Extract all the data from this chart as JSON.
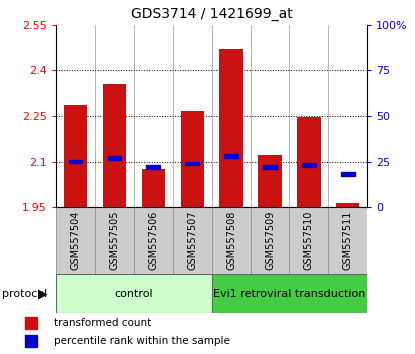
{
  "title": "GDS3714 / 1421699_at",
  "samples": [
    "GSM557504",
    "GSM557505",
    "GSM557506",
    "GSM557507",
    "GSM557508",
    "GSM557509",
    "GSM557510",
    "GSM557511"
  ],
  "transformed_count": [
    2.285,
    2.355,
    2.075,
    2.265,
    2.47,
    2.12,
    2.245,
    1.965
  ],
  "percentile_rank": [
    25,
    27,
    22,
    24,
    28,
    22,
    23,
    18
  ],
  "bar_bottom": 1.95,
  "ylim_left": [
    1.95,
    2.55
  ],
  "ylim_right": [
    0,
    100
  ],
  "yticks_left": [
    1.95,
    2.1,
    2.25,
    2.4,
    2.55
  ],
  "yticks_right": [
    0,
    25,
    50,
    75,
    100
  ],
  "ytick_labels_left": [
    "1.95",
    "2.1",
    "2.25",
    "2.4",
    "2.55"
  ],
  "ytick_labels_right": [
    "0",
    "25",
    "50",
    "75",
    "100%"
  ],
  "bar_color": "#cc1111",
  "percentile_color": "#0000cc",
  "grid_color": "#000000",
  "bg_color": "#ffffff",
  "plot_bg": "#ffffff",
  "control_label": "control",
  "treatment_label": "Evi1 retroviral transduction",
  "protocol_label": "protocol",
  "legend_tc": "transformed count",
  "legend_pr": "percentile rank within the sample",
  "control_bg": "#ccffcc",
  "treatment_bg": "#44cc44",
  "sample_bg": "#cccccc",
  "n_control": 4,
  "n_treatment": 4
}
